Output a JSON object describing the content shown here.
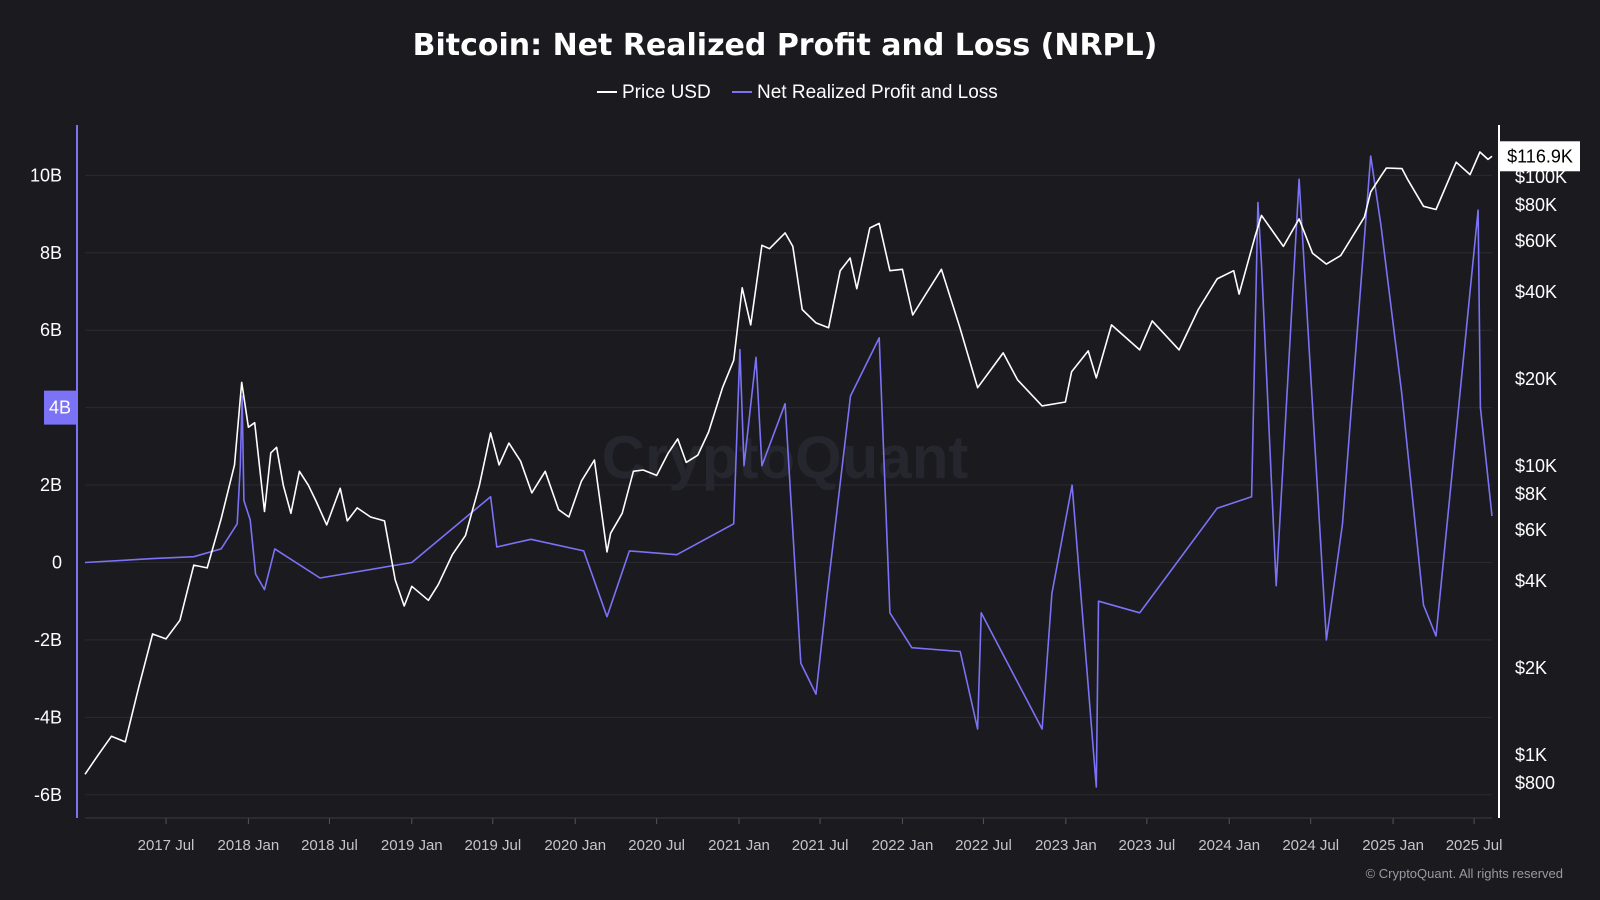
{
  "colors": {
    "background": "#1a1a1f",
    "price_line": "#ffffff",
    "nrpl": "#7b72f5",
    "grid": "#2a2a31"
  },
  "watermark": "CryptoQuant",
  "copyright": "© CryptoQuant. All rights reserved",
  "chart_data": {
    "type": "line",
    "title": "Bitcoin: Net Realized Profit and Loss (NRPL)",
    "legend_position": "top-center",
    "grid": true,
    "x_ticks": [
      "2017 Jul",
      "2018 Jan",
      "2018 Jul",
      "2019 Jan",
      "2019 Jul",
      "2020 Jan",
      "2020 Jul",
      "2021 Jan",
      "2021 Jul",
      "2022 Jan",
      "2022 Jul",
      "2023 Jan",
      "2023 Jul",
      "2024 Jan",
      "2024 Jul",
      "2025 Jan",
      "2025 Jul"
    ],
    "x_range": [
      "2017-01-01",
      "2025-08-10"
    ],
    "y_left": {
      "ticks": [
        10,
        8,
        6,
        4,
        2,
        0,
        -2,
        -4,
        -6
      ],
      "tick_labels": [
        "10B",
        "8B",
        "6B",
        "4B",
        "2B",
        "0",
        "-2B",
        "-4B",
        "-6B"
      ],
      "range": [
        -6.6,
        11.3
      ],
      "highlight_label": "4B",
      "highlight_value": 4
    },
    "y_right": {
      "scale": "log",
      "ticks": [
        100000,
        80000,
        60000,
        40000,
        20000,
        10000,
        8000,
        6000,
        4000,
        2000,
        1000,
        800
      ],
      "tick_labels": [
        "$100K",
        "$80K",
        "$60K",
        "$40K",
        "$20K",
        "$10K",
        "$8K",
        "$6K",
        "$4K",
        "$2K",
        "$1K",
        "$800"
      ],
      "range": [
        600,
        150000
      ],
      "current_label": "$116.9K",
      "current_value": 116900
    },
    "series": [
      {
        "name": "Price USD",
        "axis": "right",
        "points": [
          [
            "2017-01-01",
            850
          ],
          [
            "2017-02-01",
            1000
          ],
          [
            "2017-03-01",
            1150
          ],
          [
            "2017-04-01",
            1100
          ],
          [
            "2017-05-01",
            1700
          ],
          [
            "2017-06-01",
            2600
          ],
          [
            "2017-07-01",
            2500
          ],
          [
            "2017-08-01",
            2900
          ],
          [
            "2017-09-01",
            4500
          ],
          [
            "2017-10-01",
            4400
          ],
          [
            "2017-11-01",
            6500
          ],
          [
            "2017-12-01",
            10000
          ],
          [
            "2017-12-17",
            19300
          ],
          [
            "2018-01-01",
            13500
          ],
          [
            "2018-01-15",
            14000
          ],
          [
            "2018-02-06",
            6900
          ],
          [
            "2018-02-20",
            11000
          ],
          [
            "2018-03-05",
            11500
          ],
          [
            "2018-03-20",
            8500
          ],
          [
            "2018-04-06",
            6800
          ],
          [
            "2018-04-25",
            9500
          ],
          [
            "2018-05-15",
            8500
          ],
          [
            "2018-06-01",
            7500
          ],
          [
            "2018-06-25",
            6200
          ],
          [
            "2018-07-25",
            8300
          ],
          [
            "2018-08-10",
            6400
          ],
          [
            "2018-09-01",
            7100
          ],
          [
            "2018-10-01",
            6600
          ],
          [
            "2018-11-01",
            6400
          ],
          [
            "2018-11-25",
            4000
          ],
          [
            "2018-12-15",
            3250
          ],
          [
            "2019-01-01",
            3800
          ],
          [
            "2019-02-07",
            3400
          ],
          [
            "2019-03-01",
            3850
          ],
          [
            "2019-04-02",
            4900
          ],
          [
            "2019-05-01",
            5700
          ],
          [
            "2019-06-01",
            8500
          ],
          [
            "2019-06-26",
            12900
          ],
          [
            "2019-07-15",
            10000
          ],
          [
            "2019-08-06",
            11900
          ],
          [
            "2019-09-01",
            10300
          ],
          [
            "2019-09-26",
            8000
          ],
          [
            "2019-10-26",
            9500
          ],
          [
            "2019-11-25",
            7000
          ],
          [
            "2019-12-18",
            6600
          ],
          [
            "2020-01-15",
            8800
          ],
          [
            "2020-02-13",
            10400
          ],
          [
            "2020-03-12",
            5000
          ],
          [
            "2020-03-20",
            5800
          ],
          [
            "2020-04-15",
            6800
          ],
          [
            "2020-05-10",
            9500
          ],
          [
            "2020-06-01",
            9600
          ],
          [
            "2020-07-01",
            9200
          ],
          [
            "2020-07-27",
            11000
          ],
          [
            "2020-08-17",
            12300
          ],
          [
            "2020-09-05",
            10200
          ],
          [
            "2020-10-01",
            10800
          ],
          [
            "2020-10-25",
            13000
          ],
          [
            "2020-11-25",
            18500
          ],
          [
            "2020-12-20",
            23000
          ],
          [
            "2021-01-08",
            41000
          ],
          [
            "2021-01-27",
            30500
          ],
          [
            "2021-02-21",
            57500
          ],
          [
            "2021-03-10",
            56000
          ],
          [
            "2021-04-14",
            63500
          ],
          [
            "2021-05-01",
            57000
          ],
          [
            "2021-05-22",
            34500
          ],
          [
            "2021-06-22",
            31000
          ],
          [
            "2021-07-20",
            29800
          ],
          [
            "2021-08-15",
            47000
          ],
          [
            "2021-09-06",
            52000
          ],
          [
            "2021-09-21",
            40700
          ],
          [
            "2021-10-20",
            66000
          ],
          [
            "2021-11-10",
            68500
          ],
          [
            "2021-12-04",
            47000
          ],
          [
            "2022-01-01",
            47500
          ],
          [
            "2022-01-24",
            33000
          ],
          [
            "2022-03-29",
            47500
          ],
          [
            "2022-05-09",
            30000
          ],
          [
            "2022-06-18",
            18500
          ],
          [
            "2022-08-14",
            24400
          ],
          [
            "2022-09-15",
            19700
          ],
          [
            "2022-11-09",
            16000
          ],
          [
            "2022-12-31",
            16500
          ],
          [
            "2023-01-14",
            21000
          ],
          [
            "2023-02-20",
            24800
          ],
          [
            "2023-03-10",
            20000
          ],
          [
            "2023-04-13",
            30500
          ],
          [
            "2023-06-15",
            25000
          ],
          [
            "2023-07-13",
            31500
          ],
          [
            "2023-09-11",
            25000
          ],
          [
            "2023-10-24",
            34500
          ],
          [
            "2023-12-05",
            44000
          ],
          [
            "2024-01-11",
            47000
          ],
          [
            "2024-01-23",
            39000
          ],
          [
            "2024-02-28",
            62000
          ],
          [
            "2024-03-13",
            73000
          ],
          [
            "2024-05-01",
            57000
          ],
          [
            "2024-06-05",
            71000
          ],
          [
            "2024-07-05",
            54000
          ],
          [
            "2024-08-05",
            49500
          ],
          [
            "2024-09-06",
            53000
          ],
          [
            "2024-10-29",
            72000
          ],
          [
            "2024-11-12",
            88000
          ],
          [
            "2024-12-05",
            100000
          ],
          [
            "2024-12-17",
            106500
          ],
          [
            "2025-01-21",
            106000
          ],
          [
            "2025-02-03",
            97000
          ],
          [
            "2025-03-10",
            78500
          ],
          [
            "2025-04-07",
            76500
          ],
          [
            "2025-05-22",
            111500
          ],
          [
            "2025-06-22",
            101000
          ],
          [
            "2025-07-14",
            121000
          ],
          [
            "2025-08-01",
            114000
          ],
          [
            "2025-08-10",
            116900
          ]
        ]
      },
      {
        "name": "Net Realized Profit and Loss",
        "axis": "left",
        "unit": "B USD",
        "points": [
          [
            "2017-01-01",
            0
          ],
          [
            "2017-06-01",
            0.1
          ],
          [
            "2017-09-01",
            0.15
          ],
          [
            "2017-11-01",
            0.35
          ],
          [
            "2017-12-07",
            1.0
          ],
          [
            "2017-12-14",
            2.5
          ],
          [
            "2017-12-18",
            4.3
          ],
          [
            "2017-12-22",
            1.6
          ],
          [
            "2018-01-05",
            1.1
          ],
          [
            "2018-01-17",
            -0.3
          ],
          [
            "2018-02-06",
            -0.7
          ],
          [
            "2018-03-01",
            0.35
          ],
          [
            "2018-06-10",
            -0.4
          ],
          [
            "2019-01-01",
            0
          ],
          [
            "2019-06-26",
            1.7
          ],
          [
            "2019-07-10",
            0.4
          ],
          [
            "2019-09-24",
            0.6
          ],
          [
            "2020-01-20",
            0.3
          ],
          [
            "2020-03-12",
            -1.4
          ],
          [
            "2020-05-01",
            0.3
          ],
          [
            "2020-08-15",
            0.2
          ],
          [
            "2020-12-20",
            1.0
          ],
          [
            "2021-01-03",
            5.5
          ],
          [
            "2021-01-12",
            2.5
          ],
          [
            "2021-02-08",
            5.3
          ],
          [
            "2021-02-21",
            2.5
          ],
          [
            "2021-04-14",
            4.1
          ],
          [
            "2021-05-19",
            -2.6
          ],
          [
            "2021-06-22",
            -3.4
          ],
          [
            "2021-07-15",
            -1.0
          ],
          [
            "2021-09-07",
            4.3
          ],
          [
            "2021-11-10",
            5.8
          ],
          [
            "2021-12-04",
            -1.3
          ],
          [
            "2022-01-22",
            -2.2
          ],
          [
            "2022-05-10",
            -2.3
          ],
          [
            "2022-06-18",
            -4.3
          ],
          [
            "2022-06-26",
            -1.3
          ],
          [
            "2022-11-09",
            -4.3
          ],
          [
            "2022-12-01",
            -0.8
          ],
          [
            "2023-01-15",
            2.0
          ],
          [
            "2023-03-10",
            -5.8
          ],
          [
            "2023-03-15",
            -1.0
          ],
          [
            "2023-06-15",
            -1.3
          ],
          [
            "2023-12-05",
            1.4
          ],
          [
            "2024-02-20",
            1.7
          ],
          [
            "2024-03-05",
            9.3
          ],
          [
            "2024-03-13",
            7.7
          ],
          [
            "2024-04-15",
            -0.6
          ],
          [
            "2024-06-05",
            9.9
          ],
          [
            "2024-08-05",
            -2.0
          ],
          [
            "2024-09-10",
            1.0
          ],
          [
            "2024-11-12",
            10.5
          ],
          [
            "2024-12-05",
            8.7
          ],
          [
            "2025-01-20",
            4.4
          ],
          [
            "2025-03-10",
            -1.1
          ],
          [
            "2025-04-07",
            -1.9
          ],
          [
            "2025-07-10",
            9.1
          ],
          [
            "2025-07-15",
            4.0
          ],
          [
            "2025-08-10",
            1.2
          ]
        ]
      }
    ]
  }
}
